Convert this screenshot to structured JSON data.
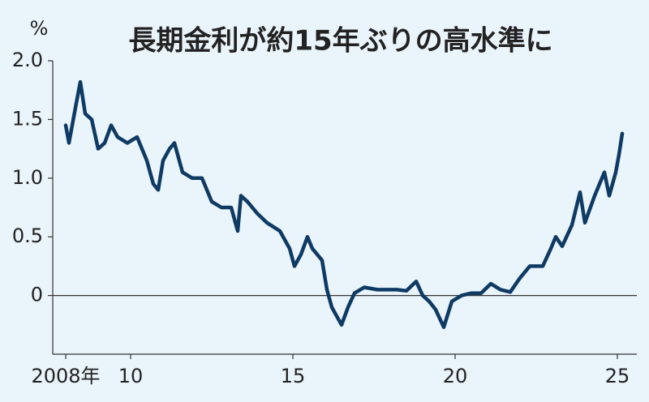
{
  "chart_data": {
    "type": "line",
    "title": "長期金利が約15年ぶりの高水準に",
    "ylabel": "%",
    "x": [
      2008.0,
      2008.1,
      2008.3,
      2008.45,
      2008.6,
      2008.8,
      2009.0,
      2009.2,
      2009.4,
      2009.6,
      2009.9,
      2010.2,
      2010.5,
      2010.7,
      2010.85,
      2011.0,
      2011.2,
      2011.35,
      2011.6,
      2011.9,
      2012.2,
      2012.5,
      2012.8,
      2013.1,
      2013.3,
      2013.4,
      2013.6,
      2013.9,
      2014.2,
      2014.6,
      2014.9,
      2015.05,
      2015.25,
      2015.45,
      2015.6,
      2015.9,
      2016.05,
      2016.2,
      2016.5,
      2016.7,
      2016.9,
      2017.2,
      2017.6,
      2017.9,
      2018.2,
      2018.5,
      2018.8,
      2019.0,
      2019.2,
      2019.4,
      2019.65,
      2019.9,
      2020.2,
      2020.5,
      2020.8,
      2021.1,
      2021.4,
      2021.7,
      2022.0,
      2022.3,
      2022.7,
      2022.95,
      2023.1,
      2023.3,
      2023.6,
      2023.85,
      2024.0,
      2024.3,
      2024.6,
      2024.75,
      2024.95,
      2025.05,
      2025.15
    ],
    "series": [
      {
        "color": "#0e3a63",
        "values": [
          1.45,
          1.3,
          1.6,
          1.82,
          1.55,
          1.5,
          1.25,
          1.3,
          1.45,
          1.35,
          1.3,
          1.35,
          1.15,
          0.95,
          0.9,
          1.15,
          1.25,
          1.3,
          1.05,
          1.0,
          1.0,
          0.8,
          0.75,
          0.75,
          0.55,
          0.85,
          0.8,
          0.7,
          0.62,
          0.55,
          0.4,
          0.25,
          0.35,
          0.5,
          0.4,
          0.3,
          0.05,
          -0.1,
          -0.25,
          -0.1,
          0.02,
          0.07,
          0.05,
          0.05,
          0.05,
          0.04,
          0.12,
          0.0,
          -0.05,
          -0.12,
          -0.27,
          -0.05,
          0.0,
          0.02,
          0.02,
          0.1,
          0.05,
          0.03,
          0.15,
          0.25,
          0.25,
          0.4,
          0.5,
          0.42,
          0.6,
          0.88,
          0.62,
          0.85,
          1.05,
          0.85,
          1.05,
          1.2,
          1.38
        ]
      }
    ],
    "xlim": [
      2007.6,
      2025.6
    ],
    "xticks": [
      {
        "value": 2008,
        "label": "2008年"
      },
      {
        "value": 2010,
        "label": "10"
      },
      {
        "value": 2015,
        "label": "15"
      },
      {
        "value": 2020,
        "label": "20"
      },
      {
        "value": 2025,
        "label": "25"
      }
    ],
    "ylim": [
      -0.5,
      2.0
    ],
    "yticks": [
      0,
      {
        "value": 0.5,
        "label": "0.5"
      },
      {
        "value": 1.0,
        "label": "1.0"
      },
      {
        "value": 1.5,
        "label": "1.5"
      },
      {
        "value": 2.0,
        "label": "2.0"
      }
    ],
    "zero_line": true
  }
}
